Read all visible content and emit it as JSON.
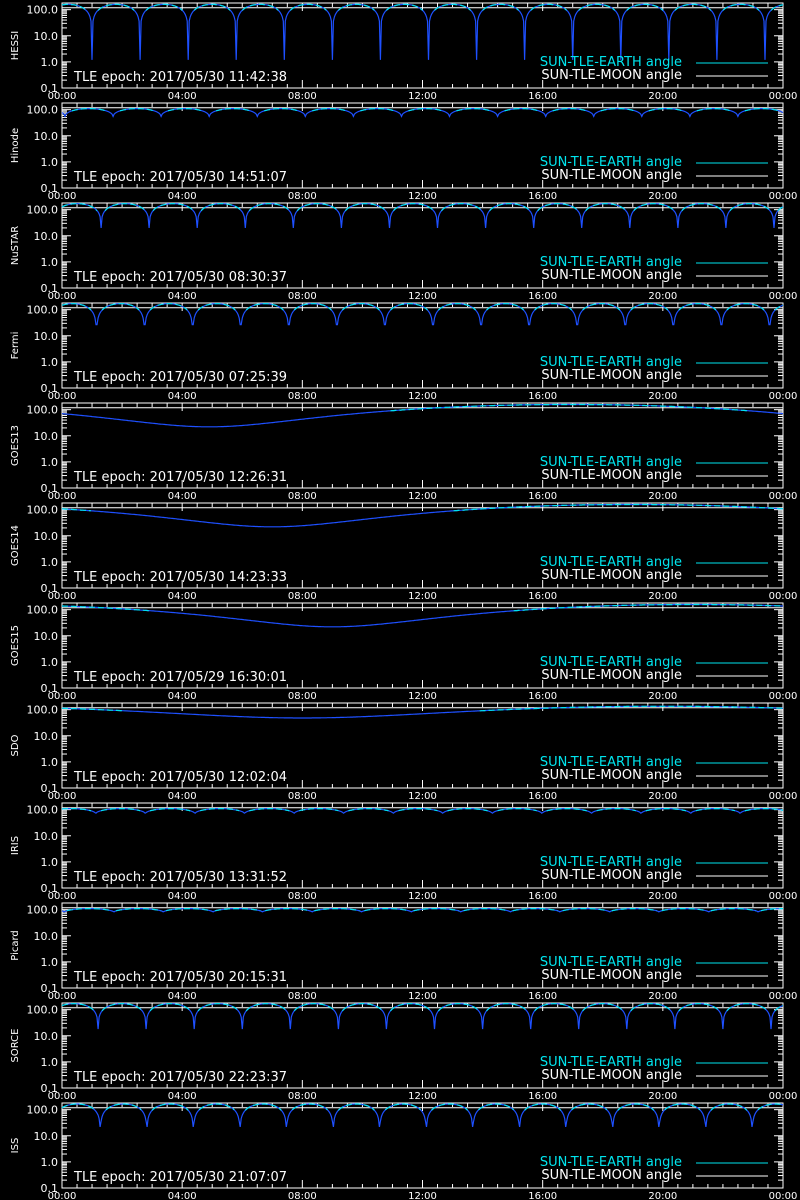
{
  "colors": {
    "background": "#000000",
    "axes": "#ffffff",
    "earth_angle": "#00e5ee",
    "earth_angle_dip": "#1e50ff",
    "moon_angle": "#ffffff"
  },
  "shared": {
    "type": "line",
    "y_scale": "log",
    "ylim": [
      0.1,
      180.0
    ],
    "y_ticks": [
      "100.0",
      "10.0",
      "1.0",
      "0.1"
    ],
    "x_ticks": [
      "00:00",
      "04:00",
      "08:00",
      "12:00",
      "16:00",
      "20:00",
      "00:00"
    ],
    "legend": [
      "SUN-TLE-EARTH angle",
      "SUN-TLE-MOON angle"
    ],
    "legend_placement": "bottom-right",
    "epoch_prefix": "TLE epoch: "
  },
  "chart_data": [
    {
      "type": "line",
      "ylabel": "HESSI",
      "epoch": "2017/05/30 11:42:38",
      "series": [
        {
          "name": "SUN-TLE-EARTH angle",
          "pattern": "orbital",
          "period_h": 1.6,
          "phase_h": 0.2,
          "min_deg": 1.2,
          "max_deg": 160
        },
        {
          "name": "SUN-TLE-MOON angle",
          "pattern": "flat",
          "value_deg": 118
        }
      ]
    },
    {
      "type": "line",
      "ylabel": "Hinode",
      "epoch": "2017/05/30 14:51:07",
      "series": [
        {
          "name": "SUN-TLE-EARTH angle",
          "pattern": "orbital",
          "period_h": 1.6,
          "phase_h": 0.9,
          "min_deg": 55,
          "max_deg": 110
        },
        {
          "name": "SUN-TLE-MOON angle",
          "pattern": "flat",
          "value_deg": 118
        }
      ]
    },
    {
      "type": "line",
      "ylabel": "NuSTAR",
      "epoch": "2017/05/30 08:30:37",
      "series": [
        {
          "name": "SUN-TLE-EARTH angle",
          "pattern": "orbital",
          "period_h": 1.6,
          "phase_h": 0.5,
          "min_deg": 20,
          "max_deg": 170
        },
        {
          "name": "SUN-TLE-MOON angle",
          "pattern": "flat",
          "value_deg": 118
        }
      ]
    },
    {
      "type": "line",
      "ylabel": "Fermi",
      "epoch": "2017/05/30 07:25:39",
      "series": [
        {
          "name": "SUN-TLE-EARTH angle",
          "pattern": "orbital",
          "period_h": 1.6,
          "phase_h": 0.35,
          "min_deg": 0.8,
          "max_deg": 170
        },
        {
          "name": "SUN-TLE-MOON angle",
          "pattern": "flat",
          "value_deg": 118
        }
      ]
    },
    {
      "type": "line",
      "ylabel": "GOES13",
      "epoch": "2017/05/30 12:26:31",
      "series": [
        {
          "name": "SUN-TLE-EARTH angle",
          "pattern": "geo",
          "dip_h": 4.9,
          "min_deg": 22,
          "max_deg": 158
        },
        {
          "name": "SUN-TLE-MOON angle",
          "pattern": "flat",
          "value_deg": 118
        }
      ]
    },
    {
      "type": "line",
      "ylabel": "GOES14",
      "epoch": "2017/05/30 14:23:33",
      "series": [
        {
          "name": "SUN-TLE-EARTH angle",
          "pattern": "geo",
          "dip_h": 7.0,
          "min_deg": 22,
          "max_deg": 158
        },
        {
          "name": "SUN-TLE-MOON angle",
          "pattern": "flat",
          "value_deg": 118
        }
      ]
    },
    {
      "type": "line",
      "ylabel": "GOES15",
      "epoch": "2017/05/29 16:30:01",
      "series": [
        {
          "name": "SUN-TLE-EARTH angle",
          "pattern": "geo",
          "dip_h": 9.0,
          "min_deg": 22,
          "max_deg": 158
        },
        {
          "name": "SUN-TLE-MOON angle",
          "pattern": "flat",
          "value_deg": 118
        }
      ]
    },
    {
      "type": "line",
      "ylabel": "SDO",
      "epoch": "2017/05/30 12:02:04",
      "series": [
        {
          "name": "SUN-TLE-EARTH angle",
          "pattern": "geo",
          "dip_h": 8.0,
          "min_deg": 48,
          "max_deg": 135
        },
        {
          "name": "SUN-TLE-MOON angle",
          "pattern": "flat",
          "value_deg": 118
        }
      ]
    },
    {
      "type": "line",
      "ylabel": "IRIS",
      "epoch": "2017/05/30 13:31:52",
      "series": [
        {
          "name": "SUN-TLE-EARTH angle",
          "pattern": "orbital",
          "period_h": 1.65,
          "phase_h": 0.3,
          "min_deg": 70,
          "max_deg": 110
        },
        {
          "name": "SUN-TLE-MOON angle",
          "pattern": "flat",
          "value_deg": 118
        }
      ]
    },
    {
      "type": "line",
      "ylabel": "Picard",
      "epoch": "2017/05/30 20:15:31",
      "series": [
        {
          "name": "SUN-TLE-EARTH angle",
          "pattern": "orbital",
          "period_h": 1.65,
          "phase_h": 0.9,
          "min_deg": 80,
          "max_deg": 110
        },
        {
          "name": "SUN-TLE-MOON angle",
          "pattern": "flat",
          "value_deg": 118
        }
      ]
    },
    {
      "type": "line",
      "ylabel": "SORCE",
      "epoch": "2017/05/30 22:23:37",
      "series": [
        {
          "name": "SUN-TLE-EARTH angle",
          "pattern": "orbital",
          "period_h": 1.6,
          "phase_h": 0.4,
          "min_deg": 18,
          "max_deg": 170
        },
        {
          "name": "SUN-TLE-MOON angle",
          "pattern": "flat",
          "value_deg": 118
        }
      ]
    },
    {
      "type": "line",
      "ylabel": "ISS",
      "epoch": "2017/05/30 21:07:07",
      "series": [
        {
          "name": "SUN-TLE-EARTH angle",
          "pattern": "orbital",
          "period_h": 1.55,
          "phase_h": 0.5,
          "min_deg": 5,
          "max_deg": 165
        },
        {
          "name": "SUN-TLE-MOON angle",
          "pattern": "flat",
          "value_deg": 118
        }
      ]
    }
  ]
}
